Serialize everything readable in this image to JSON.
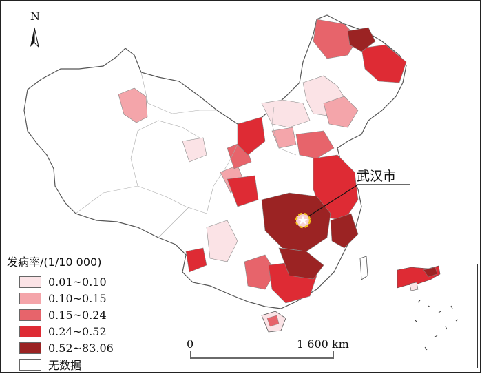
{
  "north": {
    "label": "N"
  },
  "callout": {
    "label": "武汉市"
  },
  "legend": {
    "title": "发病率/(1/10 000)",
    "items": [
      {
        "label": "0.01~0.10",
        "color": "#fbe3e6"
      },
      {
        "label": "0.10~0.15",
        "color": "#f4a5aa"
      },
      {
        "label": "0.15~0.24",
        "color": "#e7646b"
      },
      {
        "label": "0.24~0.52",
        "color": "#de2b34"
      },
      {
        "label": "0.52~83.06",
        "color": "#9b2323"
      },
      {
        "label": "无数据",
        "color": "#ffffff"
      }
    ]
  },
  "scale": {
    "zero": "0",
    "distance": "1 600 km"
  },
  "colors": {
    "boundary": "#888888",
    "outline": "#555555",
    "wuhan_marker": "#f2c21a"
  }
}
